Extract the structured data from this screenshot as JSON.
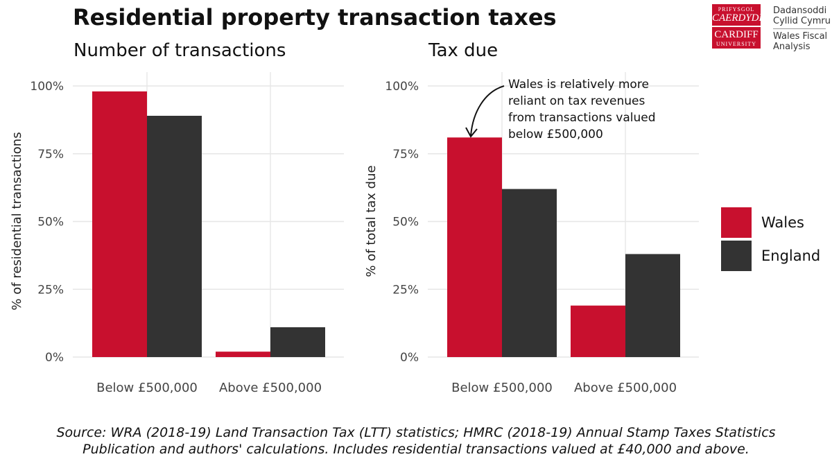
{
  "title": "Residential property transaction taxes",
  "logo": {
    "line1": "PRIFYSGOL",
    "line2": "CAERDYDD",
    "line3": "CARDIFF",
    "line4": "UNIVERSITY"
  },
  "brand": {
    "welsh_line1": "Dadansoddi",
    "welsh_line2": "Cyllid Cymru",
    "english_line1": "Wales Fiscal",
    "english_line2": "Analysis"
  },
  "legend": [
    {
      "name": "Wales",
      "color": "#c8102e"
    },
    {
      "name": "England",
      "color": "#333333"
    }
  ],
  "annotation_lines": [
    "Wales is relatively more",
    "reliant on tax revenues",
    "from transactions valued",
    "below £500,000"
  ],
  "source_line1": "Source: WRA (2018-19) Land Transaction Tax (LTT) statistics; HMRC (2018-19) Annual Stamp Taxes Statistics",
  "source_line2": "Publication and authors' calculations. Includes residential transactions valued at £40,000 and above.",
  "chart_data": [
    {
      "type": "bar",
      "title": "Number of transactions",
      "ylabel": "% of residential transactions",
      "xlabel": "",
      "categories": [
        "Below £500,000",
        "Above £500,000"
      ],
      "series": [
        {
          "name": "Wales",
          "values": [
            98,
            2
          ]
        },
        {
          "name": "England",
          "values": [
            89,
            11
          ]
        }
      ],
      "ylim": [
        0,
        100
      ],
      "yticks": [
        0,
        25,
        50,
        75,
        100
      ],
      "ytick_labels": [
        "0%",
        "25%",
        "50%",
        "75%",
        "100%"
      ],
      "grid": true
    },
    {
      "type": "bar",
      "title": "Tax due",
      "ylabel": "% of total tax due",
      "xlabel": "",
      "categories": [
        "Below £500,000",
        "Above £500,000"
      ],
      "series": [
        {
          "name": "Wales",
          "values": [
            81,
            19
          ]
        },
        {
          "name": "England",
          "values": [
            62,
            38
          ]
        }
      ],
      "ylim": [
        0,
        100
      ],
      "yticks": [
        0,
        25,
        50,
        75,
        100
      ],
      "ytick_labels": [
        "0%",
        "25%",
        "50%",
        "75%",
        "100%"
      ],
      "grid": true
    }
  ]
}
